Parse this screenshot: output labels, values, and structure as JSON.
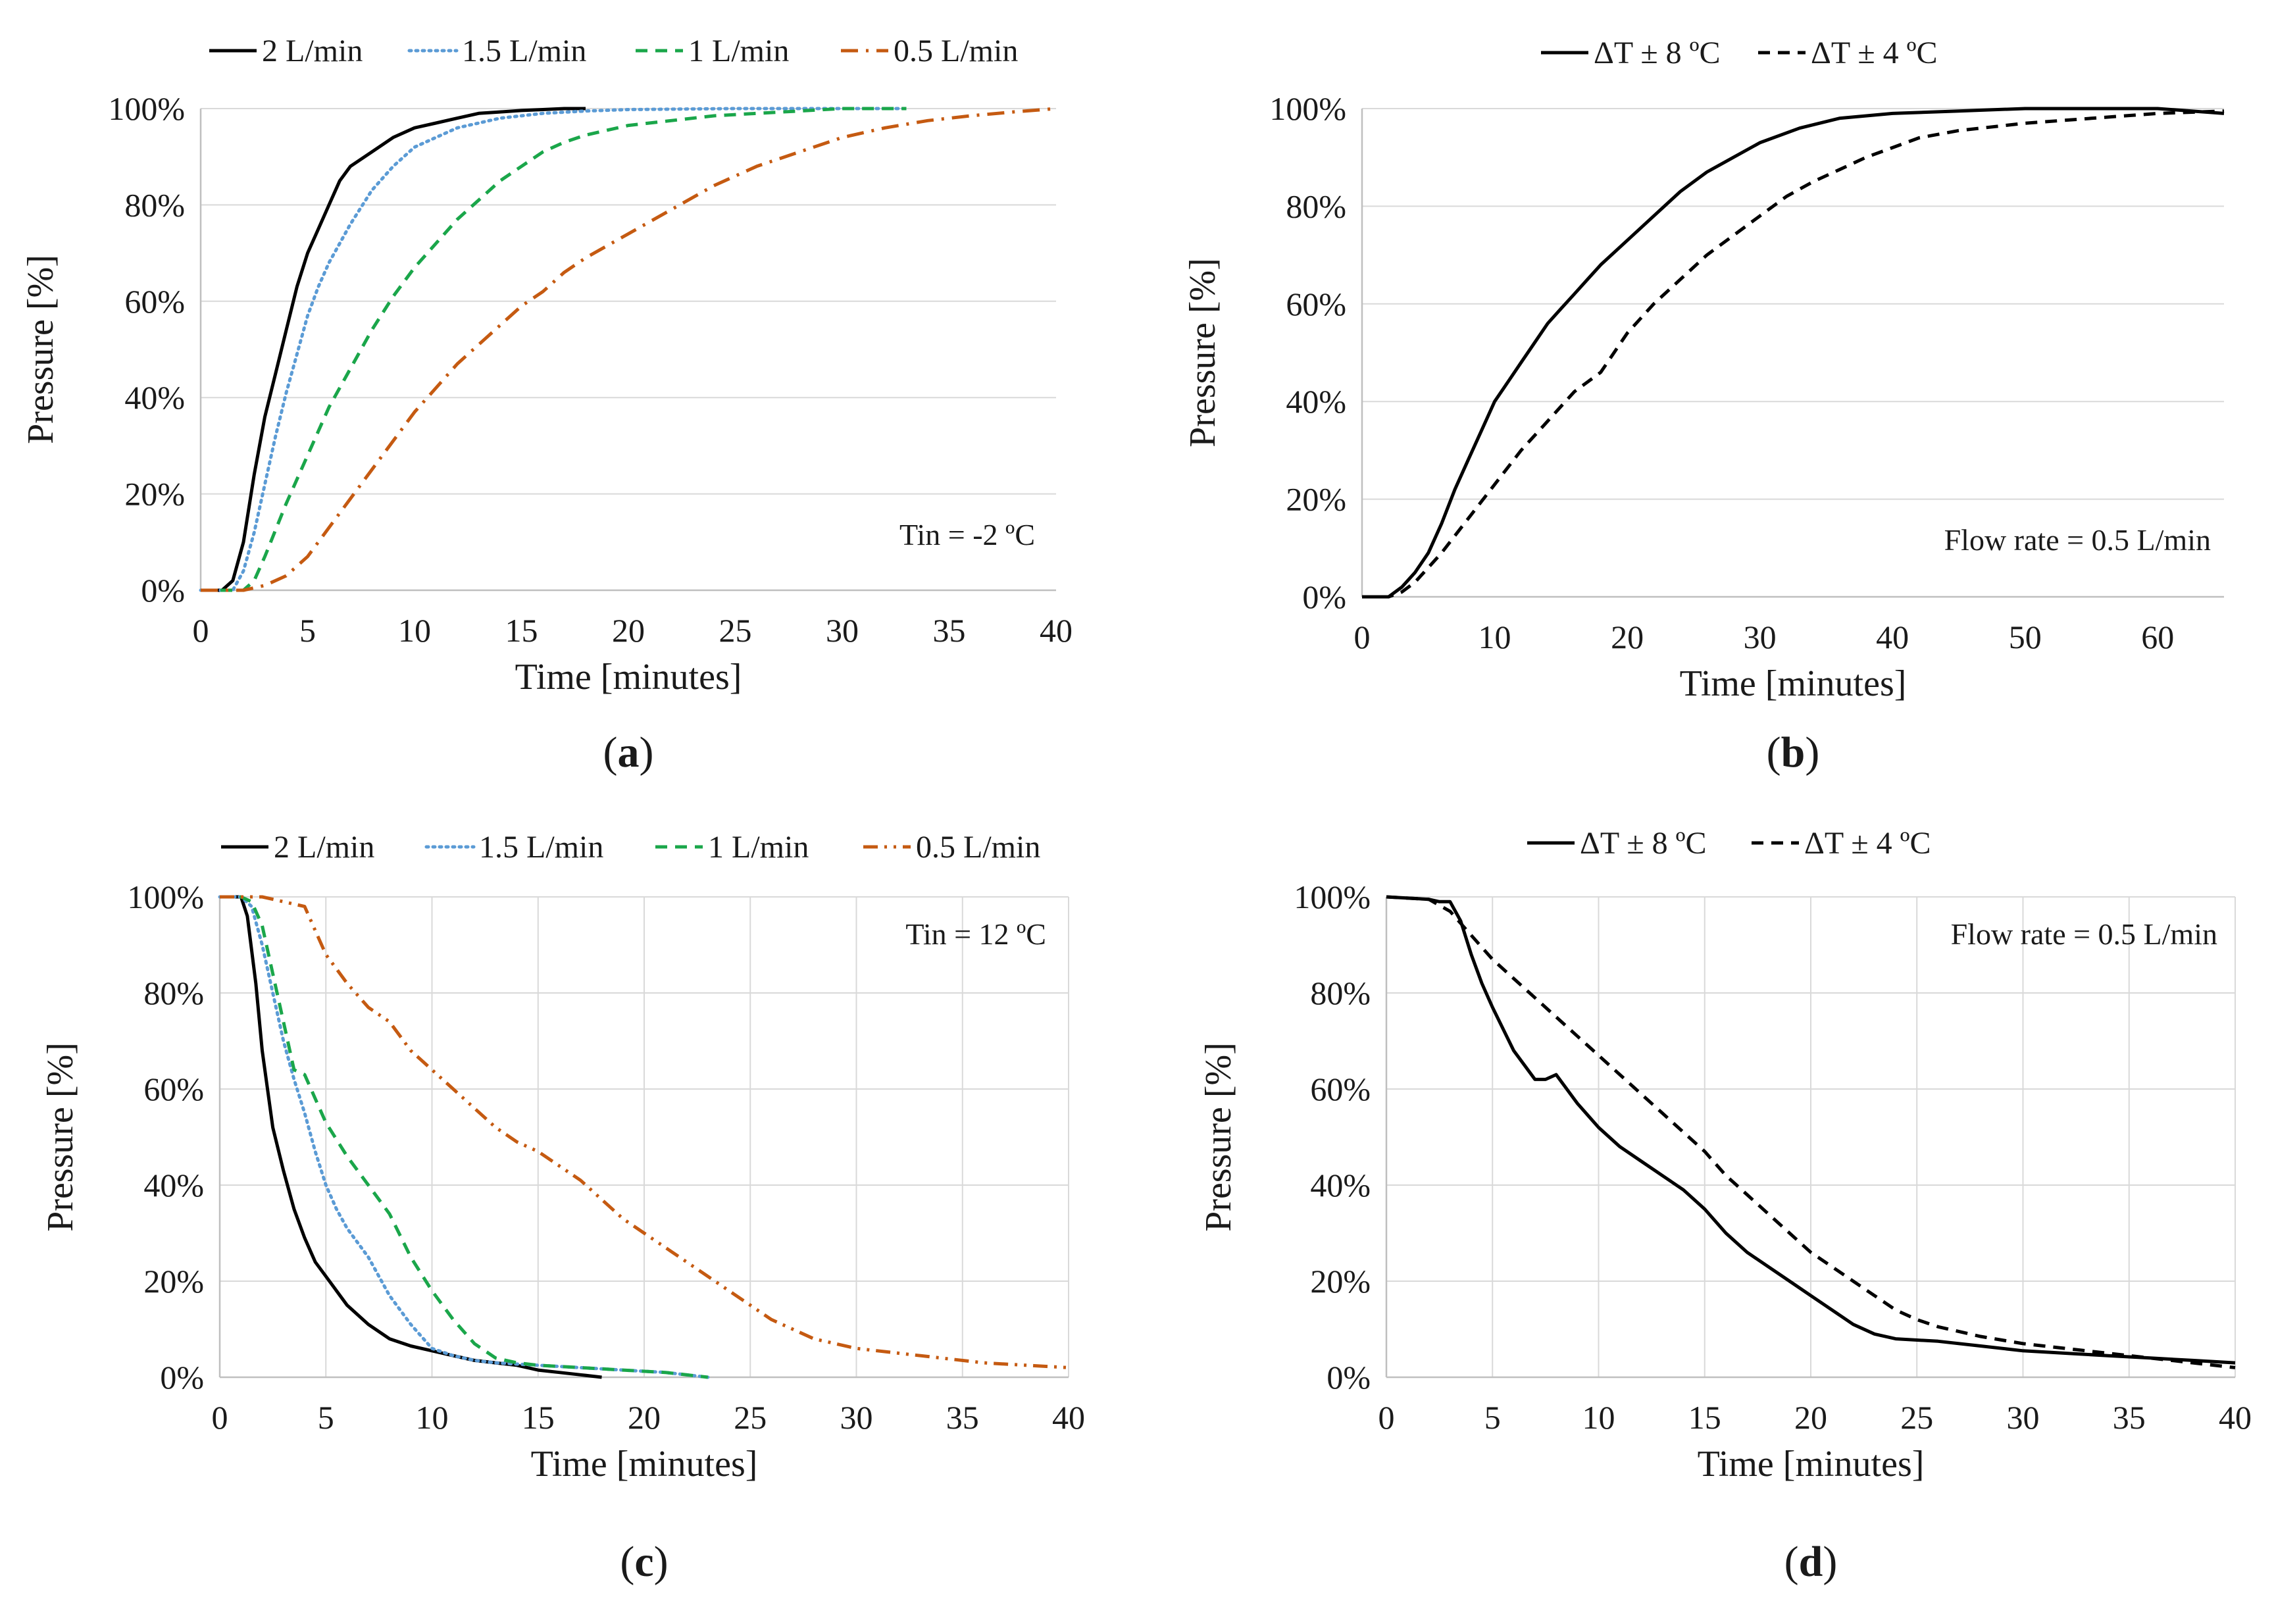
{
  "chart_data": [
    {
      "id": "a",
      "type": "line",
      "caption": "a",
      "xlabel": "Time [minutes]",
      "ylabel": "Pressure [%]",
      "xlim": [
        0,
        40
      ],
      "ylim": [
        0,
        100
      ],
      "xticks": [
        0,
        5,
        10,
        15,
        20,
        25,
        30,
        35,
        40
      ],
      "yticks": [
        0,
        20,
        40,
        60,
        80,
        100
      ],
      "xtick_labels": [
        "0",
        "5",
        "10",
        "15",
        "20",
        "25",
        "30",
        "35",
        "40"
      ],
      "ytick_labels": [
        "0%",
        "20%",
        "40%",
        "60%",
        "80%",
        "100%"
      ],
      "grid": "horizontal",
      "legend_position": "top",
      "annotation": "Tin = -2 ºC",
      "series": [
        {
          "name": "2 L/min",
          "color": "#000000",
          "dash": "solid",
          "x": [
            0,
            1,
            1.5,
            2,
            2.5,
            3,
            3.5,
            4,
            4.5,
            5,
            5.5,
            6,
            6.5,
            7,
            8,
            9,
            10,
            11,
            12,
            13,
            14,
            15,
            16,
            17,
            18
          ],
          "y": [
            0,
            0,
            2,
            10,
            24,
            36,
            45,
            54,
            63,
            70,
            75,
            80,
            85,
            88,
            91,
            94,
            96,
            97,
            98,
            99,
            99.3,
            99.6,
            99.8,
            100,
            100
          ]
        },
        {
          "name": "1.5 L/min",
          "color": "#5b9bd5",
          "dash": "dot",
          "x": [
            0,
            1.5,
            2,
            2.5,
            3,
            3.5,
            4,
            4.5,
            5,
            5.5,
            6,
            7,
            8,
            9,
            10,
            11,
            12,
            13,
            14,
            15,
            16,
            18,
            20,
            25,
            30,
            33
          ],
          "y": [
            0,
            0,
            4,
            12,
            22,
            32,
            41,
            49,
            57,
            63,
            68,
            76,
            83,
            88,
            92,
            94,
            96,
            97,
            98,
            98.5,
            99,
            99.5,
            99.8,
            100,
            100,
            100
          ]
        },
        {
          "name": "1 L/min",
          "color": "#1aa64a",
          "dash": "dash",
          "x": [
            0,
            2,
            2.5,
            3,
            4,
            5,
            6,
            7,
            8,
            9,
            10,
            11,
            12,
            13,
            14,
            15,
            16,
            17,
            18,
            19,
            20,
            22,
            24,
            26,
            28,
            30,
            33
          ],
          "y": [
            0,
            0,
            2,
            7,
            18,
            28,
            38,
            46,
            54,
            61,
            67,
            72,
            77,
            81,
            85,
            88,
            91,
            93,
            94.5,
            95.5,
            96.5,
            97.5,
            98.5,
            99,
            99.5,
            100,
            100
          ]
        },
        {
          "name": "0.5 L/min",
          "color": "#c55a11",
          "dash": "dashdot",
          "x": [
            0,
            2,
            3,
            4,
            5,
            6,
            7,
            8,
            9,
            10,
            11,
            12,
            13,
            14,
            15,
            16,
            17,
            18,
            19,
            20,
            22,
            24,
            26,
            28,
            30,
            32,
            34,
            36,
            38,
            40
          ],
          "y": [
            0,
            0,
            1,
            3,
            7,
            13,
            19,
            25,
            31,
            37,
            42,
            47,
            51,
            55,
            59,
            62,
            66,
            69,
            71.5,
            74,
            79,
            84,
            88,
            91,
            94,
            96,
            97.5,
            98.5,
            99.3,
            100
          ]
        }
      ]
    },
    {
      "id": "b",
      "type": "line",
      "caption": "b",
      "xlabel": "Time [minutes]",
      "ylabel": "Pressure [%]",
      "xlim": [
        0,
        65
      ],
      "ylim": [
        0,
        100
      ],
      "xticks": [
        0,
        10,
        20,
        30,
        40,
        50,
        60
      ],
      "yticks": [
        0,
        20,
        40,
        60,
        80,
        100
      ],
      "xtick_labels": [
        "0",
        "10",
        "20",
        "30",
        "40",
        "50",
        "60"
      ],
      "ytick_labels": [
        "0%",
        "20%",
        "40%",
        "60%",
        "80%",
        "100%"
      ],
      "grid": "horizontal",
      "legend_position": "top",
      "annotation": "Flow rate = 0.5 L/min",
      "series": [
        {
          "name": "ΔT ± 8 ºC",
          "color": "#000000",
          "dash": "solid",
          "x": [
            0,
            2,
            3,
            4,
            5,
            6,
            7,
            8,
            9,
            10,
            11,
            12,
            13,
            14,
            15,
            16,
            17,
            18,
            20,
            22,
            24,
            26,
            28,
            30,
            33,
            36,
            40,
            45,
            50,
            55,
            60,
            65
          ],
          "y": [
            0,
            0,
            2,
            5,
            9,
            15,
            22,
            28,
            34,
            40,
            44,
            48,
            52,
            56,
            59,
            62,
            65,
            68,
            73,
            78,
            83,
            87,
            90,
            93,
            96,
            98,
            99,
            99.5,
            100,
            100,
            100,
            99
          ]
        },
        {
          "name": "ΔT ± 4 ºC",
          "color": "#000000",
          "dash": "dash",
          "x": [
            0,
            2,
            3,
            4,
            5,
            6,
            8,
            10,
            12,
            14,
            16,
            18,
            20,
            22,
            24,
            26,
            28,
            30,
            32,
            34,
            36,
            38,
            40,
            42,
            45,
            50,
            55,
            60,
            65
          ],
          "y": [
            0,
            0,
            1,
            3,
            6,
            9,
            16,
            23,
            30,
            36,
            42,
            46,
            54,
            60,
            65,
            70,
            74,
            78,
            82,
            85,
            87.5,
            90,
            92,
            94,
            95.5,
            97,
            98,
            99,
            99.5
          ]
        }
      ]
    },
    {
      "id": "c",
      "type": "line",
      "caption": "c",
      "xlabel": "Time [minutes]",
      "ylabel": "Pressure [%]",
      "xlim": [
        0,
        40
      ],
      "ylim": [
        0,
        100
      ],
      "xticks": [
        0,
        5,
        10,
        15,
        20,
        25,
        30,
        35,
        40
      ],
      "yticks": [
        0,
        20,
        40,
        60,
        80,
        100
      ],
      "xtick_labels": [
        "0",
        "5",
        "10",
        "15",
        "20",
        "25",
        "30",
        "35",
        "40"
      ],
      "ytick_labels": [
        "0%",
        "20%",
        "40%",
        "60%",
        "80%",
        "100%"
      ],
      "grid": "both",
      "legend_position": "top",
      "annotation": "Tin = 12 ºC",
      "series": [
        {
          "name": "2 L/min",
          "color": "#000000",
          "dash": "solid",
          "x": [
            0,
            1,
            1.3,
            1.7,
            2,
            2.5,
            3,
            3.5,
            4,
            4.5,
            5,
            6,
            7,
            8,
            9,
            10,
            11,
            12,
            13,
            14,
            15,
            16,
            17,
            18
          ],
          "y": [
            100,
            100,
            96,
            82,
            68,
            52,
            43,
            35,
            29,
            24,
            21,
            15,
            11,
            8,
            6.5,
            5.5,
            4.5,
            3.5,
            3,
            2.5,
            1.5,
            1,
            0.5,
            0
          ]
        },
        {
          "name": "1.5 L/min",
          "color": "#5b9bd5",
          "dash": "dot",
          "x": [
            0,
            1,
            1.5,
            2,
            2.5,
            3,
            3.5,
            4,
            4.5,
            5,
            5.5,
            6,
            7,
            8,
            9,
            10,
            11,
            12,
            13,
            15,
            17,
            19,
            21,
            23
          ],
          "y": [
            100,
            100,
            98,
            90,
            80,
            70,
            62,
            55,
            47,
            40,
            35,
            31,
            25,
            17,
            11,
            6,
            4.5,
            3.5,
            3,
            2.5,
            2,
            1.5,
            1,
            0
          ]
        },
        {
          "name": "1 L/min",
          "color": "#1aa64a",
          "dash": "dash",
          "x": [
            0,
            1,
            1.5,
            2,
            2.5,
            3,
            3.5,
            4,
            4.5,
            5,
            6,
            7,
            8,
            9,
            10,
            11,
            12,
            13,
            14,
            15,
            17,
            19,
            21,
            23
          ],
          "y": [
            100,
            100,
            99,
            94,
            84,
            74,
            64,
            63,
            58,
            53,
            46,
            40,
            34,
            25,
            18,
            12,
            7,
            4,
            3,
            2.5,
            2,
            1.5,
            1,
            0
          ]
        },
        {
          "name": "0.5 L/min",
          "color": "#c55a11",
          "dash": "dashdotdot",
          "x": [
            0,
            2,
            3,
            4,
            4.5,
            5,
            6,
            7,
            8,
            9,
            10,
            11,
            12,
            13,
            14,
            15,
            16,
            17,
            18,
            19,
            20,
            21,
            22,
            23,
            24,
            25,
            26,
            27,
            28,
            29,
            30,
            32,
            34,
            36,
            38,
            40
          ],
          "y": [
            100,
            100,
            99,
            98,
            93,
            88,
            82,
            77,
            74,
            68,
            64,
            60,
            56,
            52,
            49,
            47,
            44,
            41,
            37,
            33,
            30,
            27,
            24,
            21,
            18,
            15,
            12,
            10,
            8,
            7,
            6,
            5,
            4,
            3,
            2.5,
            2
          ]
        }
      ]
    },
    {
      "id": "d",
      "type": "line",
      "caption": "d",
      "xlabel": "Time [minutes]",
      "ylabel": "Pressure [%]",
      "xlim": [
        0,
        40
      ],
      "ylim": [
        0,
        100
      ],
      "xticks": [
        0,
        5,
        10,
        15,
        20,
        25,
        30,
        35,
        40
      ],
      "yticks": [
        0,
        20,
        40,
        60,
        80,
        100
      ],
      "xtick_labels": [
        "0",
        "5",
        "10",
        "15",
        "20",
        "25",
        "30",
        "35",
        "40"
      ],
      "ytick_labels": [
        "0%",
        "20%",
        "40%",
        "60%",
        "80%",
        "100%"
      ],
      "grid": "both",
      "legend_position": "top",
      "annotation": "Flow rate = 0.5 L/min",
      "series": [
        {
          "name": "ΔT ± 8 ºC",
          "color": "#000000",
          "dash": "solid",
          "x": [
            0,
            2,
            2.5,
            3,
            3.5,
            4,
            4.5,
            5,
            6,
            7,
            7.5,
            8,
            9,
            10,
            11,
            12,
            13,
            14,
            15,
            16,
            17,
            18,
            19,
            20,
            21,
            22,
            23,
            24,
            26,
            28,
            30,
            32,
            34,
            36,
            38,
            40
          ],
          "y": [
            100,
            99.5,
            99,
            99,
            95,
            88,
            82,
            77,
            68,
            62,
            62,
            63,
            57,
            52,
            48,
            45,
            42,
            39,
            35,
            30,
            26,
            23,
            20,
            17,
            14,
            11,
            9,
            8,
            7.5,
            6.5,
            5.5,
            5,
            4.5,
            4,
            3.5,
            3
          ]
        },
        {
          "name": "ΔT ± 4 ºC",
          "color": "#000000",
          "dash": "dash",
          "x": [
            0,
            2,
            3,
            4,
            5,
            6,
            7,
            8,
            9,
            10,
            11,
            12,
            13,
            14,
            15,
            16,
            17,
            18,
            19,
            20,
            21,
            22,
            23,
            24,
            25,
            26,
            28,
            30,
            32,
            34,
            36,
            38,
            40
          ],
          "y": [
            100,
            99.5,
            97,
            92,
            87,
            83,
            79,
            75,
            71,
            67,
            63,
            59,
            55,
            51,
            47,
            42,
            38,
            34,
            30,
            26,
            23,
            20,
            17,
            14,
            12,
            10.5,
            8.5,
            7,
            6,
            5,
            4,
            3,
            2
          ]
        }
      ]
    }
  ]
}
